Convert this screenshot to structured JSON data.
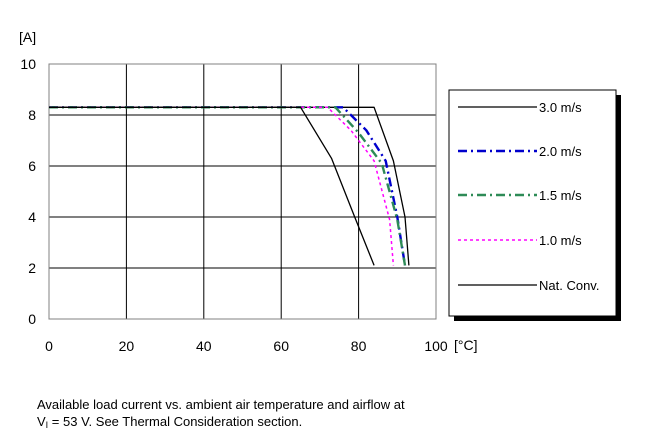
{
  "chart_data": {
    "type": "line",
    "ylabel": "[A]",
    "xlabel": "[°C]",
    "xlim": [
      0,
      100
    ],
    "ylim": [
      0,
      10
    ],
    "xticks": [
      "0",
      "20",
      "40",
      "60",
      "80",
      "100"
    ],
    "yticks": [
      "0",
      "2",
      "4",
      "6",
      "8",
      "10"
    ],
    "grid": true,
    "legend_position": "right",
    "series": [
      {
        "name": "3.0 m/s",
        "color": "#000000",
        "dash": "solid",
        "width": 1.3,
        "x": [
          0,
          84,
          89,
          92,
          93
        ],
        "y": [
          8.3,
          8.3,
          6.2,
          4.0,
          2.1
        ]
      },
      {
        "name": "2.0 m/s",
        "color": "#0000cc",
        "dash": "dashdot",
        "width": 2.4,
        "x": [
          0,
          76,
          82,
          87,
          90,
          92
        ],
        "y": [
          8.3,
          8.3,
          7.4,
          6.2,
          4.0,
          2.1
        ]
      },
      {
        "name": "1.5 m/s",
        "color": "#2e8b57",
        "dash": "dashdot",
        "width": 2.4,
        "x": [
          0,
          74,
          80,
          86,
          90,
          92
        ],
        "y": [
          8.3,
          8.3,
          7.3,
          6.1,
          3.9,
          2.1
        ]
      },
      {
        "name": "1.0 m/s",
        "color": "#ff00ff",
        "dash": "dotted",
        "width": 1.5,
        "x": [
          0,
          72,
          78,
          84,
          88,
          89
        ],
        "y": [
          8.3,
          8.3,
          7.4,
          6.2,
          3.9,
          2.1
        ]
      },
      {
        "name": "Nat. Conv.",
        "color": "#000000",
        "dash": "solid",
        "width": 1.3,
        "x": [
          0,
          65,
          73,
          79,
          84
        ],
        "y": [
          8.3,
          8.3,
          6.3,
          4.0,
          2.1
        ]
      }
    ]
  },
  "caption": {
    "line1": "Available load current vs. ambient air temperature and airflow at",
    "v_symbol": "V",
    "v_subscript": "I",
    "line2_rest": " = 53 V. See Thermal Consideration section."
  }
}
